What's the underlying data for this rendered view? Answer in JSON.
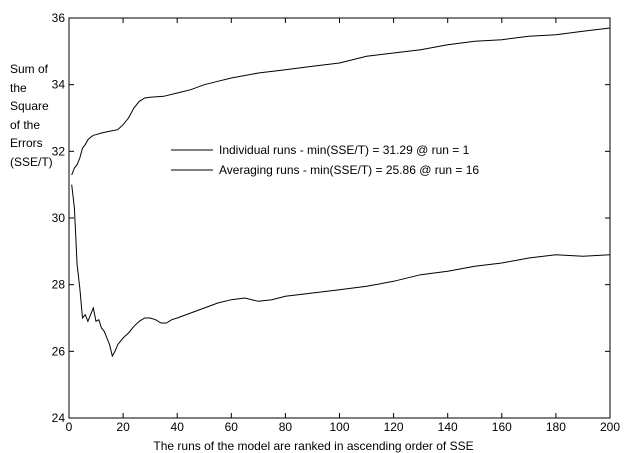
{
  "chart_data": {
    "type": "line",
    "title": "",
    "xlabel": "The runs of the model are ranked in ascending order of SSE",
    "ylabel_lines": [
      "Sum of",
      "the",
      "Square",
      "of the",
      "Errors",
      "(SSE/T)"
    ],
    "xlim": [
      0,
      200
    ],
    "ylim": [
      24,
      36
    ],
    "xticks": [
      0,
      20,
      40,
      60,
      80,
      100,
      120,
      140,
      160,
      180,
      200
    ],
    "yticks": [
      24,
      26,
      28,
      30,
      32,
      34,
      36
    ],
    "grid": false,
    "legend_position": "center",
    "series": [
      {
        "name": "Individual runs - min(SSE/T) = 31.29 @ run = 1",
        "x": [
          1,
          2,
          3,
          4,
          5,
          6,
          7,
          8,
          9,
          10,
          12,
          15,
          18,
          20,
          22,
          24,
          26,
          28,
          30,
          35,
          40,
          45,
          50,
          55,
          60,
          70,
          80,
          90,
          100,
          110,
          120,
          130,
          140,
          150,
          160,
          170,
          180,
          190,
          200
        ],
        "y": [
          31.29,
          31.5,
          31.6,
          31.8,
          32.1,
          32.2,
          32.35,
          32.42,
          32.48,
          32.5,
          32.55,
          32.6,
          32.65,
          32.8,
          33.0,
          33.3,
          33.5,
          33.6,
          33.62,
          33.65,
          33.75,
          33.85,
          34.0,
          34.1,
          34.2,
          34.35,
          34.45,
          34.55,
          34.65,
          34.85,
          34.95,
          35.05,
          35.2,
          35.3,
          35.35,
          35.45,
          35.5,
          35.6,
          35.7
        ]
      },
      {
        "name": "Averaging runs - min(SSE/T) = 25.86 @ run = 16",
        "x": [
          1,
          2,
          3,
          4,
          5,
          6,
          7,
          8,
          9,
          10,
          11,
          12,
          13,
          14,
          15,
          16,
          17,
          18,
          20,
          22,
          24,
          26,
          28,
          30,
          32,
          34,
          36,
          38,
          40,
          45,
          50,
          55,
          60,
          65,
          70,
          75,
          80,
          90,
          100,
          110,
          120,
          130,
          140,
          150,
          160,
          170,
          180,
          190,
          200
        ],
        "y": [
          31.0,
          30.3,
          28.6,
          27.9,
          27.0,
          27.1,
          26.9,
          27.1,
          27.3,
          26.9,
          26.95,
          26.7,
          26.6,
          26.4,
          26.2,
          25.86,
          26.0,
          26.2,
          26.4,
          26.55,
          26.75,
          26.9,
          27.0,
          27.0,
          26.95,
          26.85,
          26.85,
          26.95,
          27.0,
          27.15,
          27.3,
          27.45,
          27.55,
          27.6,
          27.5,
          27.55,
          27.65,
          27.75,
          27.85,
          27.95,
          28.1,
          28.3,
          28.4,
          28.55,
          28.65,
          28.8,
          28.9,
          28.85,
          28.9
        ]
      }
    ]
  }
}
